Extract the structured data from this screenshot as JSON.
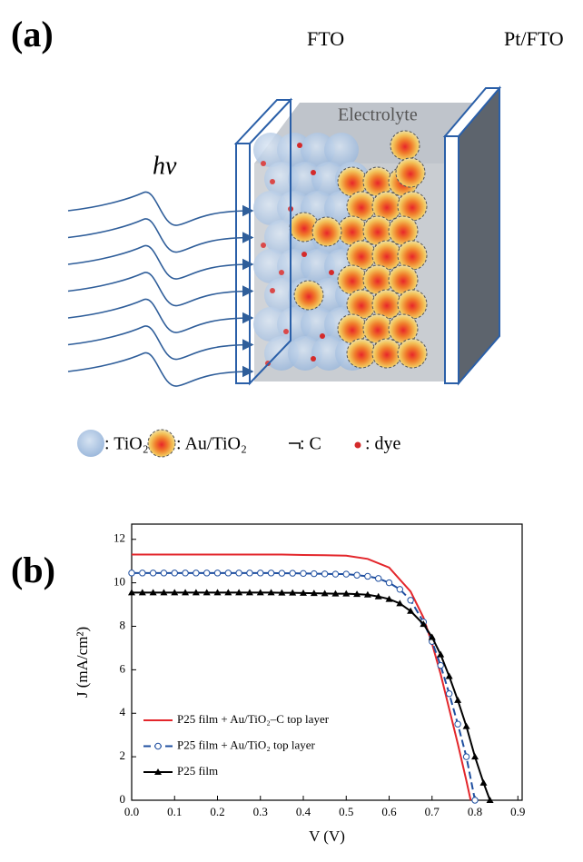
{
  "panel_a": {
    "label": "(a)",
    "fto": "FTO",
    "pt_fto": "Pt/FTO",
    "electrolyte": "Electrolyte",
    "light": "hv",
    "legend": [
      ": TiO₂",
      ": Au/TiO₂",
      ": C",
      ": dye"
    ]
  },
  "chart_data": {
    "type": "line",
    "panel_label": "(b)",
    "xlabel": "V (V)",
    "ylabel": "J (mA/cm²)",
    "xlim": [
      0,
      0.91
    ],
    "ylim": [
      0,
      12.7
    ],
    "xticks": [
      {
        "value": 0,
        "label": "0.0"
      },
      0.1,
      0.2,
      0.3,
      0.4,
      0.5,
      0.6,
      0.7,
      0.8,
      0.9
    ],
    "yticks": [
      0,
      2,
      4,
      6,
      8,
      10,
      12
    ],
    "legend": "lower left",
    "series": [
      {
        "name": "P25 film + Au/TiO₂–C top layer",
        "color": "#e3262b",
        "linestyle": "solid",
        "marker": "none",
        "x": [
          0,
          0.05,
          0.1,
          0.15,
          0.2,
          0.25,
          0.3,
          0.35,
          0.4,
          0.45,
          0.5,
          0.55,
          0.6,
          0.65,
          0.68,
          0.7,
          0.72,
          0.74,
          0.76,
          0.78,
          0.79
        ],
        "values": [
          11.3,
          11.3,
          11.3,
          11.3,
          11.3,
          11.3,
          11.3,
          11.3,
          11.28,
          11.27,
          11.25,
          11.1,
          10.7,
          9.6,
          8.4,
          7.2,
          5.8,
          4.2,
          2.6,
          0.9,
          0
        ]
      },
      {
        "name": "P25 film + Au/TiO₂ top layer",
        "color": "#1f4fa0",
        "linestyle": "dashed",
        "marker": "circle-open",
        "x": [
          0,
          0.025,
          0.05,
          0.075,
          0.1,
          0.125,
          0.15,
          0.175,
          0.2,
          0.225,
          0.25,
          0.275,
          0.3,
          0.325,
          0.35,
          0.375,
          0.4,
          0.425,
          0.45,
          0.475,
          0.5,
          0.525,
          0.55,
          0.575,
          0.6,
          0.625,
          0.65,
          0.68,
          0.7,
          0.72,
          0.74,
          0.76,
          0.78,
          0.8
        ],
        "values": [
          10.45,
          10.45,
          10.45,
          10.45,
          10.45,
          10.45,
          10.45,
          10.45,
          10.45,
          10.45,
          10.45,
          10.45,
          10.45,
          10.45,
          10.44,
          10.44,
          10.43,
          10.42,
          10.41,
          10.4,
          10.4,
          10.35,
          10.3,
          10.2,
          10.0,
          9.7,
          9.2,
          8.2,
          7.3,
          6.2,
          4.9,
          3.5,
          2.0,
          0
        ]
      },
      {
        "name": "P25 film",
        "color": "#000000",
        "linestyle": "solid",
        "marker": "triangle",
        "x": [
          0,
          0.025,
          0.05,
          0.075,
          0.1,
          0.125,
          0.15,
          0.175,
          0.2,
          0.225,
          0.25,
          0.275,
          0.3,
          0.325,
          0.35,
          0.375,
          0.4,
          0.425,
          0.45,
          0.475,
          0.5,
          0.525,
          0.55,
          0.575,
          0.6,
          0.625,
          0.65,
          0.68,
          0.7,
          0.72,
          0.74,
          0.76,
          0.78,
          0.8,
          0.82,
          0.835
        ],
        "values": [
          9.55,
          9.55,
          9.55,
          9.55,
          9.55,
          9.55,
          9.55,
          9.55,
          9.55,
          9.55,
          9.55,
          9.55,
          9.55,
          9.55,
          9.54,
          9.54,
          9.53,
          9.52,
          9.51,
          9.5,
          9.5,
          9.48,
          9.45,
          9.37,
          9.25,
          9.05,
          8.7,
          8.1,
          7.5,
          6.7,
          5.7,
          4.6,
          3.4,
          2.0,
          0.8,
          0
        ]
      }
    ]
  }
}
